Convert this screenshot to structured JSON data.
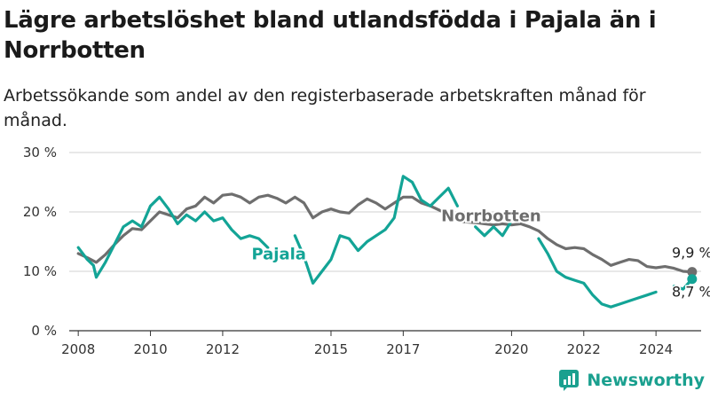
{
  "title": "Lägre arbetslöshet bland utlandsfödda i Pajala än i Norrbotten",
  "subtitle": "Arbetssökande som andel av den registerbaserade arbetskraften månad för månad.",
  "brand": "Newsworthy",
  "colors": {
    "pajala": "#13a496",
    "norrbotten": "#6e6e6e",
    "grid": "#d2d2d2",
    "axis": "#333333"
  },
  "chart_data": {
    "type": "line",
    "title": "Lägre arbetslöshet bland utlandsfödda i Pajala än i Norrbotten",
    "ylim": [
      0,
      30
    ],
    "xlim": [
      2007.75,
      2025.25
    ],
    "y_ticks": [
      0,
      10,
      20,
      30
    ],
    "y_tick_labels": [
      "0 %",
      "10 %",
      "20 %",
      "30 %"
    ],
    "x_ticks": [
      2008,
      2010,
      2012,
      2015,
      2017,
      2020,
      2022,
      2024
    ],
    "x_tick_labels": [
      "2008",
      "2010",
      "2012",
      "2015",
      "2017",
      "2020",
      "2022",
      "2024"
    ],
    "grid": "horizontal",
    "series": [
      {
        "name": "Norrbotten",
        "end_label": "9,9 %",
        "points": [
          [
            2008.0,
            13.0
          ],
          [
            2008.25,
            12.3
          ],
          [
            2008.5,
            11.5
          ],
          [
            2008.75,
            12.8
          ],
          [
            2009.0,
            14.5
          ],
          [
            2009.25,
            16.0
          ],
          [
            2009.5,
            17.2
          ],
          [
            2009.75,
            17.0
          ],
          [
            2010.0,
            18.5
          ],
          [
            2010.25,
            20.0
          ],
          [
            2010.5,
            19.5
          ],
          [
            2010.75,
            19.0
          ],
          [
            2011.0,
            20.5
          ],
          [
            2011.25,
            21.0
          ],
          [
            2011.5,
            22.5
          ],
          [
            2011.75,
            21.5
          ],
          [
            2012.0,
            22.8
          ],
          [
            2012.25,
            23.0
          ],
          [
            2012.5,
            22.5
          ],
          [
            2012.75,
            21.5
          ],
          [
            2013.0,
            22.5
          ],
          [
            2013.25,
            22.8
          ],
          [
            2013.5,
            22.3
          ],
          [
            2013.75,
            21.5
          ],
          [
            2014.0,
            22.5
          ],
          [
            2014.25,
            21.5
          ],
          [
            2014.5,
            19.0
          ],
          [
            2014.75,
            20.0
          ],
          [
            2015.0,
            20.5
          ],
          [
            2015.25,
            20.0
          ],
          [
            2015.5,
            19.8
          ],
          [
            2015.75,
            21.2
          ],
          [
            2016.0,
            22.2
          ],
          [
            2016.25,
            21.5
          ],
          [
            2016.5,
            20.5
          ],
          [
            2016.75,
            21.5
          ],
          [
            2017.0,
            22.5
          ],
          [
            2017.25,
            22.5
          ],
          [
            2017.5,
            21.5
          ],
          [
            2017.75,
            21.0
          ],
          [
            2018.0,
            20.3
          ],
          [
            2018.25,
            19.5
          ],
          [
            2018.5,
            18.5
          ],
          [
            2018.75,
            18.3
          ],
          [
            2019.0,
            18.2
          ],
          [
            2019.25,
            18.0
          ],
          [
            2019.5,
            17.8
          ],
          [
            2019.75,
            18.0
          ],
          [
            2020.0,
            17.8
          ],
          [
            2020.25,
            18.0
          ],
          [
            2020.5,
            17.5
          ],
          [
            2020.75,
            16.8
          ],
          [
            2021.0,
            15.5
          ],
          [
            2021.25,
            14.5
          ],
          [
            2021.5,
            13.8
          ],
          [
            2021.75,
            14.0
          ],
          [
            2022.0,
            13.8
          ],
          [
            2022.25,
            12.8
          ],
          [
            2022.5,
            12.0
          ],
          [
            2022.75,
            11.0
          ],
          [
            2023.0,
            11.5
          ],
          [
            2023.25,
            12.0
          ],
          [
            2023.5,
            11.8
          ],
          [
            2023.75,
            10.8
          ],
          [
            2024.0,
            10.6
          ],
          [
            2024.25,
            10.8
          ],
          [
            2024.5,
            10.5
          ],
          [
            2024.75,
            10.0
          ],
          [
            2025.0,
            9.9
          ]
        ]
      },
      {
        "name": "Pajala",
        "end_label": "8,7 %",
        "segments": [
          [
            [
              2008.0,
              14.0
            ],
            [
              2008.25,
              12.0
            ],
            [
              2008.42,
              11.0
            ],
            [
              2008.5,
              9.0
            ],
            [
              2008.75,
              11.5
            ],
            [
              2009.0,
              14.5
            ],
            [
              2009.25,
              17.5
            ],
            [
              2009.5,
              18.5
            ],
            [
              2009.75,
              17.5
            ],
            [
              2010.0,
              21.0
            ],
            [
              2010.25,
              22.5
            ],
            [
              2010.5,
              20.5
            ],
            [
              2010.75,
              18.0
            ],
            [
              2011.0,
              19.5
            ],
            [
              2011.25,
              18.5
            ],
            [
              2011.5,
              20.0
            ],
            [
              2011.75,
              18.5
            ],
            [
              2012.0,
              19.0
            ],
            [
              2012.25,
              17.0
            ],
            [
              2012.5,
              15.5
            ],
            [
              2012.75,
              16.0
            ],
            [
              2013.0,
              15.5
            ],
            [
              2013.25,
              14.0
            ]
          ],
          [
            [
              2014.0,
              16.0
            ],
            [
              2014.25,
              12.5
            ],
            [
              2014.5,
              8.0
            ],
            [
              2014.75,
              10.0
            ],
            [
              2015.0,
              12.0
            ],
            [
              2015.25,
              16.0
            ],
            [
              2015.5,
              15.5
            ],
            [
              2015.75,
              13.5
            ],
            [
              2016.0,
              15.0
            ],
            [
              2016.25,
              16.0
            ],
            [
              2016.5,
              17.0
            ],
            [
              2016.75,
              19.0
            ],
            [
              2017.0,
              26.0
            ],
            [
              2017.25,
              25.0
            ],
            [
              2017.5,
              22.0
            ],
            [
              2017.75,
              21.0
            ],
            [
              2018.0,
              22.5
            ],
            [
              2018.25,
              24.0
            ],
            [
              2018.5,
              21.0
            ]
          ],
          [
            [
              2019.0,
              17.5
            ],
            [
              2019.25,
              16.0
            ],
            [
              2019.5,
              17.5
            ],
            [
              2019.75,
              16.0
            ],
            [
              2020.0,
              18.5
            ]
          ],
          [
            [
              2020.75,
              15.5
            ],
            [
              2021.0,
              13.0
            ],
            [
              2021.25,
              10.0
            ],
            [
              2021.5,
              9.0
            ],
            [
              2021.75,
              8.5
            ],
            [
              2022.0,
              8.0
            ],
            [
              2022.25,
              6.0
            ],
            [
              2022.5,
              4.5
            ],
            [
              2022.75,
              4.0
            ],
            [
              2023.0,
              4.5
            ],
            [
              2023.25,
              5.0
            ],
            [
              2023.5,
              5.5
            ],
            [
              2023.75,
              6.0
            ],
            [
              2024.0,
              6.5
            ]
          ],
          [
            [
              2024.5,
              7.5
            ],
            [
              2024.75,
              7.0
            ],
            [
              2025.0,
              8.7
            ]
          ]
        ]
      }
    ]
  }
}
